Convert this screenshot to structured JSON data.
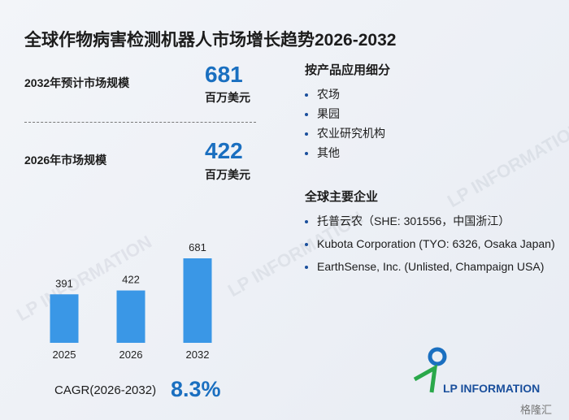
{
  "title": "全球作物病害检测机器人市场增长趋势2026-2032",
  "stats": [
    {
      "label": "2032年预计市场规模",
      "value": 681,
      "unit": "百万美元"
    },
    {
      "label": "2026年市场规模",
      "value": 422,
      "unit": "百万美元"
    }
  ],
  "segments": {
    "heading": "按产品应用细分",
    "items": [
      "农场",
      "果园",
      "农业研究机构",
      "其他"
    ]
  },
  "companies": {
    "heading": "全球主要企业",
    "items": [
      "托普云农（SHE: 301556，中国浙江）",
      "Kubota Corporation (TYO: 6326, Osaka Japan)",
      "EarthSense, Inc. (Unlisted, Champaign USA)"
    ]
  },
  "cagr": {
    "label": "CAGR(2026-2032)",
    "value": "8.3%"
  },
  "logo": "LP INFORMATION",
  "watermark": "LP INFORMATION",
  "corner_mark": "格隆汇",
  "chart_data": {
    "type": "bar",
    "categories": [
      "2025",
      "2026",
      "2032"
    ],
    "values": [
      391,
      422,
      681
    ],
    "color": "#3a97e6"
  }
}
